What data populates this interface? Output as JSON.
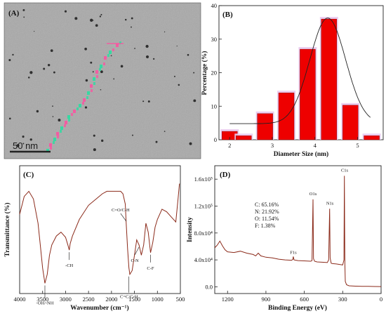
{
  "panels": {
    "A": {
      "label": "(A)",
      "scale_bar": "50 nm"
    },
    "B": {
      "label": "(B)"
    },
    "C": {
      "label": "(C)"
    },
    "D": {
      "label": "(D)"
    }
  },
  "chart_data": [
    {
      "type": "image",
      "panel": "(A)",
      "description_text": "",
      "scale_bar": "50 nm"
    },
    {
      "type": "bar",
      "panel": "(B)",
      "xlabel": "Diameter Size (nm)",
      "ylabel": "Percentage (%)",
      "x": [
        2.0,
        2.33,
        2.83,
        3.33,
        3.83,
        4.33,
        4.83,
        5.33
      ],
      "values": [
        2.5,
        1.2,
        7.8,
        14.0,
        27.0,
        36.0,
        10.3,
        1.2
      ],
      "xticks": [
        "2",
        "3",
        "4",
        "5"
      ],
      "xlim": [
        1.75,
        5.6
      ],
      "yticks": [
        0,
        10,
        20,
        30,
        40
      ],
      "ylim": [
        0,
        40
      ],
      "bar_color": "#ee0000",
      "fit_curve": {
        "type": "gaussian",
        "center": 4.3,
        "amplitude": 31.5,
        "sigma": 0.42,
        "baseline": 4.8
      }
    },
    {
      "type": "line",
      "panel": "(C)",
      "xlabel": "Wavenumber (cm⁻¹)",
      "ylabel": "Transmittance (%)",
      "xlim": [
        4000,
        500
      ],
      "xticks": [
        4000,
        3500,
        3000,
        2500,
        2000,
        1500,
        1000,
        500
      ],
      "line_color": "#8b2a1a",
      "x": [
        4000,
        3900,
        3800,
        3700,
        3600,
        3550,
        3500,
        3450,
        3400,
        3350,
        3300,
        3200,
        3100,
        3000,
        2950,
        2920,
        2900,
        2850,
        2700,
        2500,
        2300,
        2200,
        2100,
        2000,
        1900,
        1800,
        1750,
        1700,
        1680,
        1650,
        1620,
        1600,
        1550,
        1500,
        1450,
        1400,
        1350,
        1300,
        1250,
        1200,
        1150,
        1100,
        1050,
        1000,
        900,
        800,
        700,
        600,
        550,
        520
      ],
      "y": [
        62,
        76,
        80,
        74,
        55,
        38,
        20,
        8,
        15,
        30,
        38,
        45,
        48,
        44,
        38,
        34,
        39,
        45,
        58,
        69,
        75,
        78,
        80,
        80,
        80,
        80,
        78,
        70,
        55,
        35,
        20,
        15,
        18,
        30,
        42,
        38,
        30,
        38,
        55,
        48,
        32,
        40,
        52,
        58,
        66,
        64,
        60,
        56,
        74,
        86
      ],
      "annotations": [
        "-OH/-NH",
        "-CH",
        "C=O/C-H",
        "C=C/C-H",
        "C-N",
        "C-F"
      ]
    },
    {
      "type": "line",
      "panel": "(D)",
      "xlabel": "Binding Energy (eV)",
      "ylabel": "Intensity",
      "xlim": [
        1300,
        0
      ],
      "xticks": [
        "1200",
        "900",
        "600",
        "300",
        "0"
      ],
      "yticks": [
        "0.0",
        "4.0x10⁴",
        "8.0x10⁴",
        "1.2x10⁵",
        "1.6x10⁵"
      ],
      "ylim": [
        -10000,
        180000
      ],
      "line_color": "#8b2a1a",
      "x": [
        1300,
        1280,
        1260,
        1240,
        1220,
        1200,
        1150,
        1100,
        1050,
        1000,
        980,
        960,
        940,
        900,
        850,
        800,
        750,
        700,
        690,
        686,
        680,
        650,
        600,
        550,
        540,
        532,
        528,
        520,
        500,
        450,
        420,
        410,
        402,
        398,
        390,
        380,
        350,
        320,
        300,
        290,
        287,
        285,
        283,
        280,
        270,
        250,
        200,
        150,
        100,
        50,
        0
      ],
      "y": [
        58000,
        62000,
        68000,
        61000,
        55000,
        52000,
        51000,
        53000,
        50000,
        48000,
        46000,
        50000,
        46000,
        44000,
        43000,
        41000,
        40000,
        39500,
        40500,
        45000,
        40000,
        39000,
        38500,
        38000,
        39000,
        130000,
        42000,
        38000,
        37000,
        36500,
        36000,
        40000,
        116000,
        43000,
        35000,
        34500,
        34000,
        33000,
        32500,
        40000,
        165000,
        100000,
        35000,
        8000,
        3000,
        1500,
        1000,
        800,
        600,
        400,
        300
      ],
      "peaks": [
        "F1s",
        "O1s",
        "N1s",
        "C1s"
      ],
      "composition": [
        "C: 65.16%",
        "N: 21.92%",
        "O: 11.54%",
        "F: 1.38%"
      ]
    }
  ]
}
